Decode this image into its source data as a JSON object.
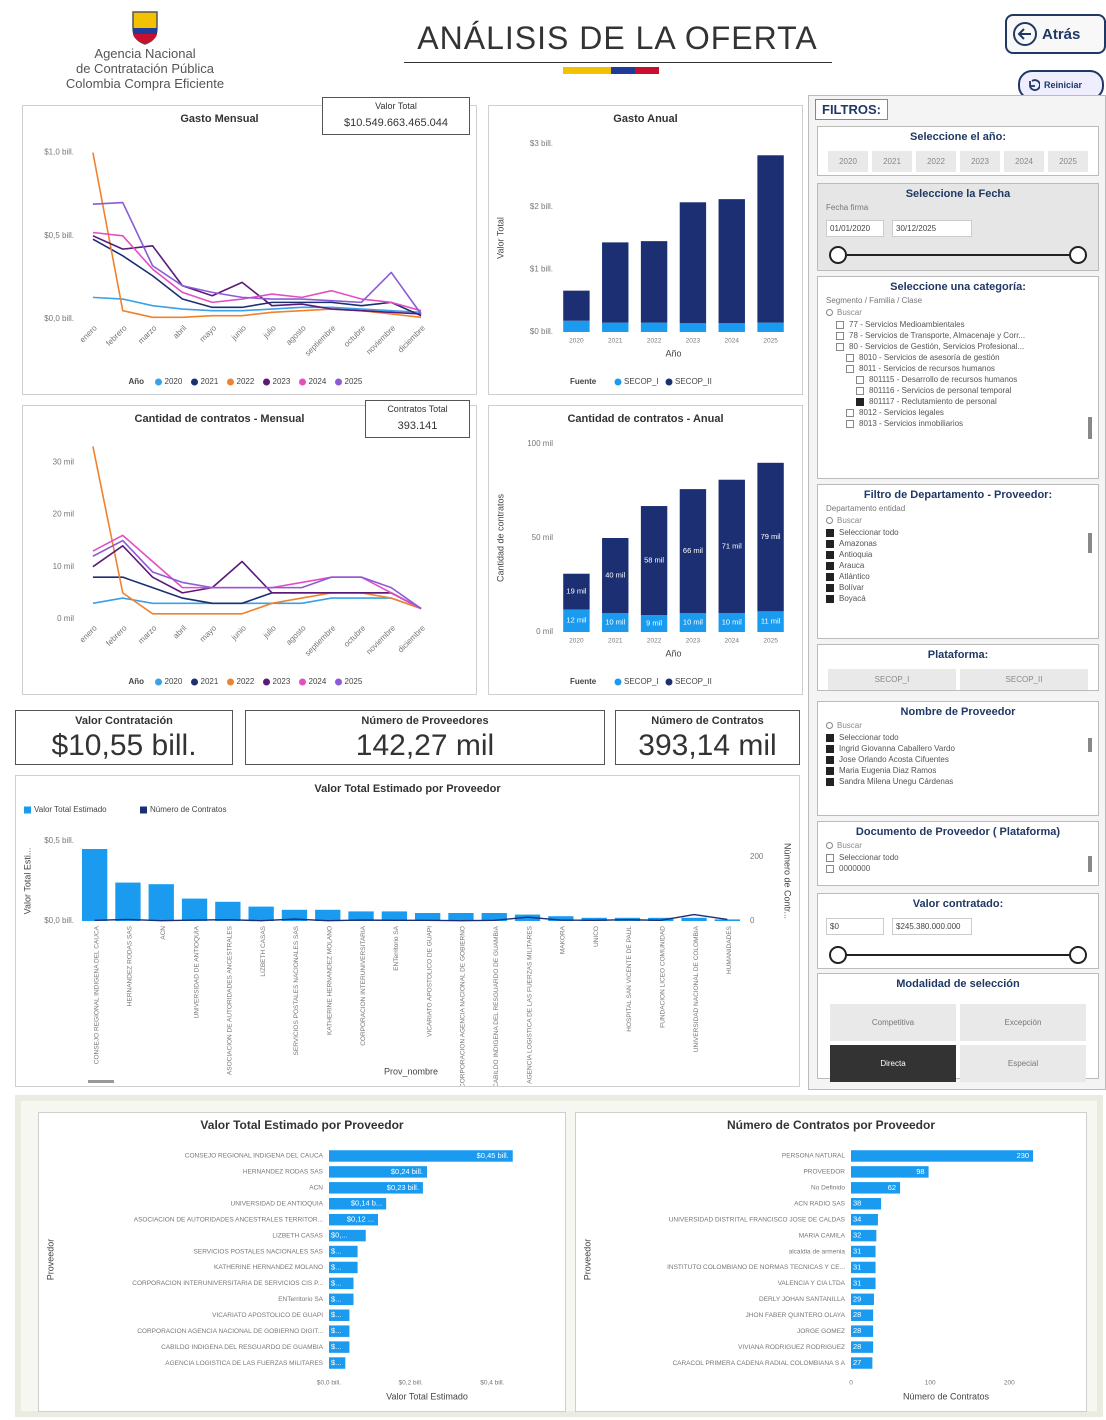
{
  "header": {
    "agency_line1": "Agencia Nacional",
    "agency_line2": "de Contratación Pública",
    "agency_line3": "Colombia Compra Eficiente",
    "title": "ANÁLISIS DE LA OFERTA",
    "back": "Atrás",
    "reset": "Reiniciar"
  },
  "cards": {
    "total_value": {
      "label": "Valor Total",
      "value": "$10.549.663.465.044"
    },
    "total_contracts": {
      "label": "Contratos Total",
      "value": "393.141"
    }
  },
  "kpis": [
    {
      "label": "Valor Contratación",
      "value": "$10,55 bill."
    },
    {
      "label": "Número de Proveedores",
      "value": "142,27 mil"
    },
    {
      "label": "Número de Contratos",
      "value": "393,14 mil"
    }
  ],
  "chart_data": [
    {
      "type": "line",
      "title": "Gasto Mensual",
      "categories": [
        "enero",
        "febrero",
        "marzo",
        "abril",
        "mayo",
        "junio",
        "julio",
        "agosto",
        "septiembre",
        "octubre",
        "noviembre",
        "diciembre"
      ],
      "series": [
        {
          "name": "2020",
          "color": "#3aa0e8",
          "values": [
            130000000000.0,
            120000000000.0,
            80000000000.0,
            60000000000.0,
            50000000000.0,
            50000000000.0,
            60000000000.0,
            70000000000.0,
            70000000000.0,
            60000000000.0,
            50000000000.0,
            40000000000.0
          ]
        },
        {
          "name": "2021",
          "color": "#1c2f73",
          "values": [
            480000000000.0,
            380000000000.0,
            260000000000.0,
            120000000000.0,
            70000000000.0,
            70000000000.0,
            100000000000.0,
            100000000000.0,
            100000000000.0,
            80000000000.0,
            100000000000.0,
            20000000000.0
          ]
        },
        {
          "name": "2022",
          "color": "#f0822e",
          "values": [
            1000000000000.0,
            50000000000.0,
            10000000000.0,
            10000000000.0,
            20000000000.0,
            20000000000.0,
            40000000000.0,
            50000000000.0,
            60000000000.0,
            50000000000.0,
            30000000000.0,
            10000000000.0
          ]
        },
        {
          "name": "2023",
          "color": "#5b1a7a",
          "values": [
            500000000000.0,
            420000000000.0,
            440000000000.0,
            200000000000.0,
            140000000000.0,
            220000000000.0,
            80000000000.0,
            90000000000.0,
            60000000000.0,
            50000000000.0,
            40000000000.0,
            30000000000.0
          ]
        },
        {
          "name": "2024",
          "color": "#e34fc0",
          "values": [
            520000000000.0,
            500000000000.0,
            300000000000.0,
            160000000000.0,
            100000000000.0,
            120000000000.0,
            150000000000.0,
            130000000000.0,
            170000000000.0,
            120000000000.0,
            100000000000.0,
            50000000000.0
          ]
        },
        {
          "name": "2025",
          "color": "#8b5bd6",
          "values": [
            690000000000.0,
            700000000000.0,
            320000000000.0,
            200000000000.0,
            160000000000.0,
            130000000000.0,
            120000000000.0,
            120000000000.0,
            110000000000.0,
            100000000000.0,
            280000000000.0,
            30000000000.0
          ]
        }
      ],
      "ylim": [
        0,
        1100000000000.0
      ],
      "yticks": [
        {
          "value": 0,
          "label": "$0,0 bill."
        },
        {
          "value": 500000000000.0,
          "label": "$0,5 bill."
        },
        {
          "value": 1000000000000.0,
          "label": "$1,0 bill."
        }
      ],
      "grid": false,
      "legend_title": "Año"
    },
    {
      "type": "bar",
      "title": "Gasto Anual",
      "categories": [
        "2020",
        "2021",
        "2022",
        "2023",
        "2024",
        "2025"
      ],
      "stacked": true,
      "series": [
        {
          "name": "SECOP_I",
          "color": "#1a9bf0",
          "values": [
            180000000000.0,
            150000000000.0,
            150000000000.0,
            140000000000.0,
            140000000000.0,
            150000000000.0
          ]
        },
        {
          "name": "SECOP_II",
          "color": "#1c2f73",
          "values": [
            480000000000.0,
            1280000000000.0,
            1300000000000.0,
            1930000000000.0,
            1980000000000.0,
            2670000000000.0
          ]
        }
      ],
      "ylim": [
        0,
        3000000000000.0
      ],
      "yticks": [
        {
          "value": 0,
          "label": "$0 bill."
        },
        {
          "value": 1000000000000.0,
          "label": "$1 bill."
        },
        {
          "value": 2000000000000.0,
          "label": "$2 bill."
        },
        {
          "value": 3000000000000.0,
          "label": "$3 bill."
        }
      ],
      "grid": false,
      "x_label": "Año",
      "y_label": "Valor Total",
      "legend_title": "Fuente"
    },
    {
      "type": "line",
      "title": "Cantidad de contratos - Mensual",
      "categories": [
        "enero",
        "febrero",
        "marzo",
        "abril",
        "mayo",
        "junio",
        "julio",
        "agosto",
        "septiembre",
        "octubre",
        "noviembre",
        "diciembre"
      ],
      "series": [
        {
          "name": "2020",
          "color": "#3aa0e8",
          "values": [
            3000,
            4000,
            3000,
            3000,
            3000,
            3000,
            3000,
            3000,
            4000,
            4000,
            4000,
            2000
          ]
        },
        {
          "name": "2021",
          "color": "#1c2f73",
          "values": [
            8000,
            8000,
            6000,
            4000,
            3000,
            3000,
            5000,
            5000,
            5000,
            5000,
            5000,
            2000
          ]
        },
        {
          "name": "2022",
          "color": "#f0822e",
          "values": [
            33000,
            5000,
            1000,
            1000,
            1000,
            1000,
            3000,
            4000,
            5000,
            5000,
            4000,
            2000
          ]
        },
        {
          "name": "2023",
          "color": "#5b1a7a",
          "values": [
            10000,
            14000,
            8000,
            5000,
            6000,
            11000,
            5000,
            5000,
            5000,
            5000,
            5000,
            2000
          ]
        },
        {
          "name": "2024",
          "color": "#e34fc0",
          "values": [
            13000,
            16000,
            11000,
            6000,
            6000,
            6000,
            6000,
            7000,
            8000,
            8000,
            5000,
            2000
          ]
        },
        {
          "name": "2025",
          "color": "#8b5bd6",
          "values": [
            12000,
            15000,
            9000,
            7000,
            6000,
            6000,
            6000,
            6000,
            8000,
            8000,
            6000,
            2000
          ]
        }
      ],
      "ylim": [
        0,
        35000
      ],
      "yticks": [
        {
          "value": 0,
          "label": "0 mil"
        },
        {
          "value": 10000,
          "label": "10 mil"
        },
        {
          "value": 20000,
          "label": "20 mil"
        },
        {
          "value": 30000,
          "label": "30 mil"
        }
      ],
      "grid": false,
      "legend_title": "Año"
    },
    {
      "type": "bar",
      "title": "Cantidad de contratos - Anual",
      "categories": [
        "2020",
        "2021",
        "2022",
        "2023",
        "2024",
        "2025"
      ],
      "stacked": true,
      "series": [
        {
          "name": "SECOP_I",
          "color": "#1a9bf0",
          "values": [
            12000,
            10000,
            9000,
            10000,
            10000,
            11000
          ],
          "value_labels": [
            "12 mil",
            "10 mil",
            "9 mil",
            "10 mil",
            "10 mil",
            "11 mil"
          ]
        },
        {
          "name": "SECOP_II",
          "color": "#1c2f73",
          "values": [
            19000,
            40000,
            58000,
            66000,
            71000,
            79000
          ],
          "value_labels": [
            "19 mil",
            "40 mil",
            "58 mil",
            "66 mil",
            "71 mil",
            "79 mil"
          ]
        }
      ],
      "ylim": [
        0,
        100000
      ],
      "yticks": [
        {
          "value": 0,
          "label": "0 mil"
        },
        {
          "value": 50000,
          "label": "50 mil"
        },
        {
          "value": 100000,
          "label": "100 mil"
        }
      ],
      "grid": false,
      "x_label": "Año",
      "y_label": "Cantidad de contratos",
      "legend_title": "Fuente"
    },
    {
      "type": "combo",
      "title": "Valor Total Estimado por Proveedor",
      "categories": [
        "CONSEJO REGIONAL INDIGENA DEL CAUCA",
        "HERNANDEZ RODAS SAS",
        "ACN",
        "UNIVERSIDAD DE ANTIOQUIA",
        "ASOCIACION DE AUTORIDADES ANCESTRALES",
        "LIZBETH CASAS",
        "SERVICIOS POSTALES NACIONALES SAS",
        "KATHERINE HERNANDEZ MOLANO",
        "CORPORACION INTERUNIVERSITARIA",
        "ENTerritorio SA",
        "VICARIATO APOSTOLICO DE GUAPI",
        "CORPORACION AGENCIA NACIONAL DE GOBIERNO",
        "CABILDO INDIGENA DEL RESGUARDO DE GUAMBIA",
        "AGENCIA LOGISTICA DE LAS FUERZAS MILITARES",
        "MAKORA",
        "UNICO",
        "HOSPITAL SAN VICENTE DE PAUL",
        "FUNDACION LICEO COMUNIDAD",
        "UNIVERSIDAD NACIONAL DE COLOMBIA",
        "HUMANIDADES"
      ],
      "series": [
        {
          "name": "Valor Total Estimado",
          "color": "#1a9bf0",
          "type": "bar",
          "values": [
            450000000000.0,
            240000000000.0,
            230000000000.0,
            140000000000.0,
            120000000000.0,
            90000000000.0,
            70000000000.0,
            70000000000.0,
            60000000000.0,
            60000000000.0,
            50000000000.0,
            50000000000.0,
            50000000000.0,
            40000000000.0,
            30000000000.0,
            20000000000.0,
            20000000000.0,
            20000000000.0,
            20000000000.0,
            10000000000.0
          ]
        },
        {
          "name": "Número de Contratos",
          "color": "#1c2f73",
          "type": "line",
          "axis": "y2",
          "values": [
            2,
            5,
            1,
            3,
            4,
            1,
            6,
            1,
            3,
            2,
            2,
            1,
            2,
            12,
            3,
            2,
            4,
            2,
            20,
            5
          ]
        }
      ],
      "ylim": [
        0,
        500000000000.0
      ],
      "yticks": [
        {
          "value": 0,
          "label": "$0,0 bill."
        },
        {
          "value": 500000000000.0,
          "label": "$0,5 bill."
        }
      ],
      "y2lim": [
        0,
        250
      ],
      "y2ticks": [
        0,
        200
      ],
      "grid": false,
      "x_label": "Prov_nombre",
      "y_label": "Valor Total Esti...",
      "y2_label": "Número de Contr..."
    },
    {
      "type": "hbar",
      "title": "Valor Total Estimado por Proveedor",
      "color": "#1a9bf0",
      "categories": [
        "CONSEJO REGIONAL INDIGENA DEL CAUCA",
        "HERNANDEZ RODAS SAS",
        "ACN",
        "UNIVERSIDAD DE ANTIOQUIA",
        "ASOCIACION DE AUTORIDADES ANCESTRALES TERRITOR...",
        "LIZBETH CASAS",
        "SERVICIOS POSTALES NACIONALES SAS",
        "KATHERINE HERNANDEZ MOLANO",
        "CORPORACION INTERUNIVERSITARIA DE SERVICIOS CIS P...",
        "ENTerritorio SA",
        "VICARIATO APOSTOLICO DE GUAPI",
        "CORPORACION AGENCIA NACIONAL DE GOBIERNO DIGIT...",
        "CABILDO INDIGENA DEL RESGUARDO DE GUAMBIA",
        "AGENCIA LOGISTICA DE LAS FUERZAS MILITARES"
      ],
      "values": [
        450000000000.0,
        240000000000.0,
        230000000000.0,
        140000000000.0,
        120000000000.0,
        90000000000.0,
        70000000000.0,
        70000000000.0,
        60000000000.0,
        60000000000.0,
        50000000000.0,
        50000000000.0,
        50000000000.0,
        40000000000.0
      ],
      "value_labels": [
        "$0,45 bill.",
        "$0,24 bill.",
        "$0,23 bill.",
        "$0,14 b...",
        "$0,12 ...",
        "$0,...",
        "$...",
        "$...",
        "$...",
        "$...",
        "$...",
        "$...",
        "$...",
        "$..."
      ],
      "xlim": [
        0,
        480000000000.0
      ],
      "xticks": [
        {
          "value": 0,
          "label": "$0,0 bill."
        },
        {
          "value": 200000000000.0,
          "label": "$0,2 bill."
        },
        {
          "value": 400000000000.0,
          "label": "$0,4 bill."
        }
      ],
      "grid": false,
      "x_label": "Valor Total Estimado",
      "y_label": "Proveedor"
    },
    {
      "type": "hbar",
      "title": "Número de Contratos por Proveedor",
      "color": "#1a9bf0",
      "categories": [
        "PERSONA NATURAL",
        "PROVEEDOR",
        "No Definido",
        "ACN RADIO SAS",
        "UNIVERSIDAD DISTRITAL FRANCISCO JOSE DE CALDAS",
        "MARIA CAMILA",
        "alcaldia de armenia",
        "INSTITUTO COLOMBIANO DE NORMAS TECNICAS Y CE...",
        "VALENCIA Y CIA LTDA",
        "DERLY JOHAN SANTANILLA",
        "JHON FABER QUINTERO OLAYA",
        "JORGE GOMEZ",
        "VIVIANA RODRIGUEZ RODRIGUEZ",
        "CARACOL PRIMERA CADENA RADIAL COLOMBIANA S A"
      ],
      "values": [
        230,
        98,
        62,
        38,
        34,
        32,
        31,
        31,
        31,
        29,
        28,
        28,
        28,
        27
      ],
      "xlim": [
        0,
        240
      ],
      "xticks": [
        0,
        100,
        200
      ],
      "grid": false,
      "x_label": "Número de Contratos",
      "y_label": "Proveedor"
    }
  ],
  "filters": {
    "title": "FILTROS:",
    "year": {
      "label": "Seleccione el año:",
      "options": [
        "2020",
        "2021",
        "2022",
        "2023",
        "2024",
        "2025"
      ]
    },
    "date": {
      "label": "Seleccione la Fecha",
      "field": "Fecha firma",
      "from": "01/01/2020",
      "to": "30/12/2025"
    },
    "category": {
      "label": "Seleccione una categoría:",
      "field": "Segmento / Familia / Clase",
      "search": "Buscar",
      "items": [
        "77 - Servicios Medioambientales",
        "78 - Servicios de Transporte, Almacenaje y Corr...",
        "80 - Servicios de Gestión, Servicios Profesional...",
        "8010 - Servicios de asesoría de gestión",
        "8011 - Servicios de recursos humanos",
        "801115 - Desarrollo de recursos humanos",
        "801116 - Servicios de personal temporal",
        "801117 - Reclutamiento de personal",
        "8012 - Servicios legales",
        "8013 - Servicios inmobiliarios"
      ]
    },
    "department": {
      "label": "Filtro de Departamento - Proveedor:",
      "field": "Departamento entidad",
      "search": "Buscar",
      "items": [
        "Seleccionar todo",
        "Amazonas",
        "Antioquia",
        "Arauca",
        "Atlántico",
        "Bolívar",
        "Boyacá"
      ]
    },
    "platform": {
      "label": "Plataforma:",
      "options": [
        "SECOP_I",
        "SECOP_II"
      ]
    },
    "provider": {
      "label": "Nombre de Proveedor",
      "search": "Buscar",
      "items": [
        "Seleccionar todo",
        "Ingrid Giovanna Caballero Vardo",
        "Jose Orlando Acosta Cifuentes",
        "Maria Eugenia Diaz Ramos",
        "Sandra Milena Unegu Cárdenas"
      ]
    },
    "document": {
      "label": "Documento de Proveedor ( Plataforma)",
      "search": "Buscar",
      "items": [
        "Seleccionar todo",
        "0000000"
      ]
    },
    "value": {
      "label": "Valor contratado:",
      "from": "$0",
      "to": "$245.380.000.000"
    },
    "modality": {
      "label": "Modalidad de selección",
      "options": [
        "Competitiva",
        "Excepción",
        "Directa",
        "Especial"
      ]
    }
  }
}
